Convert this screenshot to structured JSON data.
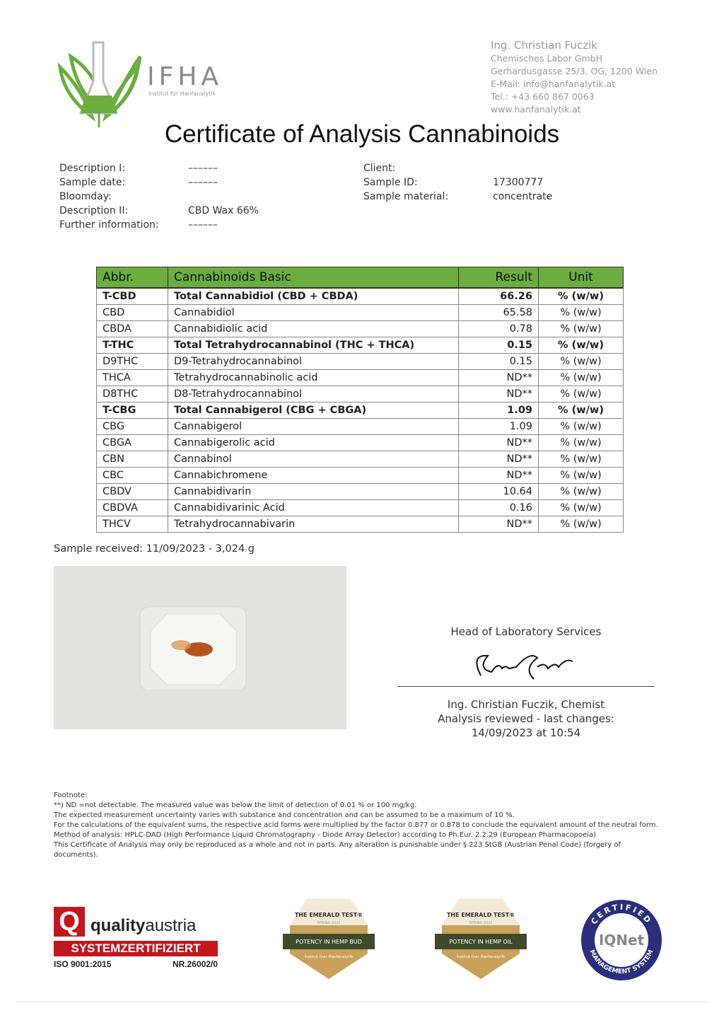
{
  "header": {
    "logo": {
      "name": "IFHA",
      "tagline": "Institut für Hanfanalytik",
      "color": "#6bad3f"
    },
    "lab": [
      "Ing. Christian Fuczik",
      "Chemisches Labor GmbH",
      "Gerhardusgasse 25/3. OG, 1200 Wien",
      "E-Mail: info@hanfanalytik.at",
      "Tel.: +43 660 867 0063",
      "www.hanfanalytik.at"
    ],
    "title": "Certificate of Analysis Cannabinoids"
  },
  "info_left": [
    {
      "label": "Description I:",
      "value": "––––––"
    },
    {
      "label": "Sample date:",
      "value": "––––––"
    },
    {
      "label": "Bloomday:",
      "value": ""
    },
    {
      "label": "Description II:",
      "value": "CBD Wax 66%"
    },
    {
      "label": "Further information:",
      "value": "––––––"
    }
  ],
  "info_right": [
    {
      "label": "Client:",
      "value": ""
    },
    {
      "label": "Sample ID:",
      "value": "17300777"
    },
    {
      "label": "Sample material:",
      "value": "concentrate"
    }
  ],
  "table": {
    "header_color": "#6bad3f",
    "columns": [
      "Abbr.",
      "Cannabinoids Basic",
      "Result",
      "Unit"
    ],
    "rows": [
      {
        "abbr": "T-CBD",
        "name": "Total Cannabidiol (CBD + CBDA)",
        "result": "66.26",
        "unit": "% (w/w)",
        "bold": true
      },
      {
        "abbr": "CBD",
        "name": "Cannabidiol",
        "result": "65.58",
        "unit": "% (w/w)"
      },
      {
        "abbr": "CBDA",
        "name": "Cannabidiolic acid",
        "result": "0.78",
        "unit": "% (w/w)"
      },
      {
        "abbr": "T-THC",
        "name": "Total Tetrahydrocannabinol (THC + THCA)",
        "result": "0.15",
        "unit": "% (w/w)",
        "bold": true
      },
      {
        "abbr": "D9THC",
        "name": "D9-Tetrahydrocannabinol",
        "result": "0.15",
        "unit": "% (w/w)"
      },
      {
        "abbr": "THCA",
        "name": "Tetrahydrocannabinolic acid",
        "result": "ND**",
        "unit": "% (w/w)"
      },
      {
        "abbr": "D8THC",
        "name": "D8-Tetrahydrocannabinol",
        "result": "ND**",
        "unit": "% (w/w)"
      },
      {
        "abbr": "T-CBG",
        "name": "Total Cannabigerol (CBG + CBGA)",
        "result": "1.09",
        "unit": "% (w/w)",
        "bold": true
      },
      {
        "abbr": "CBG",
        "name": "Cannabigerol",
        "result": "1.09",
        "unit": "% (w/w)"
      },
      {
        "abbr": "CBGA",
        "name": "Cannabigerolic acid",
        "result": "ND**",
        "unit": "% (w/w)"
      },
      {
        "abbr": "CBN",
        "name": "Cannabinol",
        "result": "ND**",
        "unit": "% (w/w)"
      },
      {
        "abbr": "CBC",
        "name": "Cannabichromene",
        "result": "ND**",
        "unit": "% (w/w)"
      },
      {
        "abbr": "CBDV",
        "name": "Cannabidivarin",
        "result": "10.64",
        "unit": "% (w/w)"
      },
      {
        "abbr": "CBDVA",
        "name": "Cannabidivarinic Acid",
        "result": "0.16",
        "unit": "% (w/w)"
      },
      {
        "abbr": "THCV",
        "name": "Tetrahydrocannabivarin",
        "result": "ND**",
        "unit": "% (w/w)"
      }
    ]
  },
  "sample_received": "Sample received: 11/09/2023 - 3,024 g",
  "signature": {
    "role": "Head of Laboratory Services",
    "signer": "Ing. Christian Fuczik, Chemist",
    "reviewed": "Analysis reviewed - last changes:",
    "date": "14/09/2023 at 10:54"
  },
  "footnote": [
    "Footnote:",
    "**) ND =not detectable. The measured value was below the limit of detection of 0.01 % or 100 mg/kg.",
    "The expected measurement uncertainty varies with substance and concentration and can be assumed to be a maximum of 10 %.",
    "For the calculations of the equivalent sums, the respective acid forms were multiplied by the factor 0.877 or 0.878 to conclude the equivalent amount of the neutral form.",
    "Method of analysis: HPLC-DAD (High Performance Liquid Chromatography - Diode Array Detector) according to Ph.Eur. 2.2.29 (European Pharmacopoeia)",
    "This Certificate of Analysis may only be reproduced as a whole and not in parts. Any alteration is punishable under § 223 StGB (Austrian Penal Code) (forgery of documents)."
  ],
  "certifications": {
    "quality_austria": {
      "brand_bold": "quality",
      "brand": "austria",
      "banner": "SYSTEMZERTIFIZIERT",
      "iso": "ISO 9001:2015",
      "nr": "NR.26002/0"
    },
    "badges": [
      {
        "title": "THE EMERALD TEST®",
        "season": "SPRING 2021",
        "ribbon": "POTENCY IN HEMP BUD",
        "org": "Institut fuer Hanfanalytik"
      },
      {
        "title": "THE EMERALD TEST®",
        "season": "SPRING 2021",
        "ribbon": "POTENCY IN HEMP OIL",
        "org": "Institut fuer Hanfanalytik"
      }
    ],
    "iqnet": {
      "top": "CERTIFIED",
      "center": "IQNet",
      "bottom": "MANAGEMENT SYSTEM"
    }
  }
}
